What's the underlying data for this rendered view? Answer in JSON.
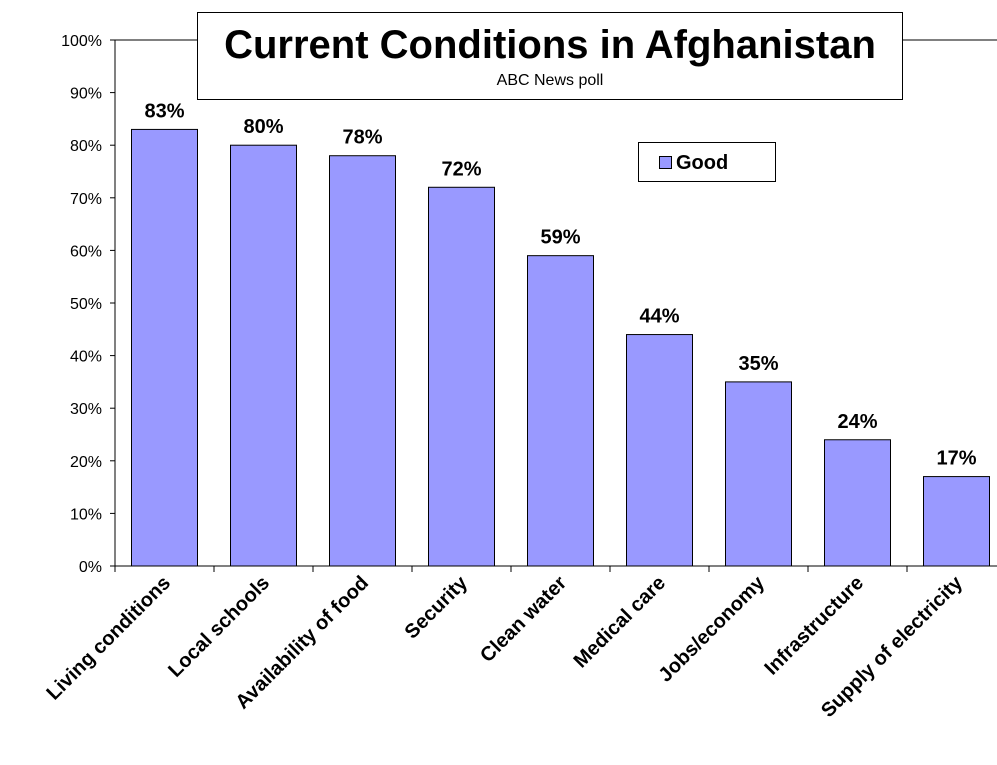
{
  "chart_data": {
    "type": "bar",
    "title": "Current Conditions in Afghanistan",
    "subtitle": "ABC News poll",
    "categories": [
      "Living conditions",
      "Local schools",
      "Availability of food",
      "Security",
      "Clean water",
      "Medical care",
      "Jobs/economy",
      "Infrastructure",
      "Supply of electricity"
    ],
    "series": [
      {
        "name": "Good",
        "values": [
          83,
          80,
          78,
          72,
          59,
          44,
          35,
          24,
          17
        ],
        "color": "#9999ff"
      }
    ],
    "data_labels": [
      "83%",
      "80%",
      "78%",
      "72%",
      "59%",
      "44%",
      "35%",
      "24%",
      "17%"
    ],
    "ylim": [
      0,
      100
    ],
    "yticks": [
      "0%",
      "10%",
      "20%",
      "30%",
      "40%",
      "50%",
      "60%",
      "70%",
      "80%",
      "90%",
      "100%"
    ],
    "grid": false,
    "legend_position": "top-right"
  }
}
